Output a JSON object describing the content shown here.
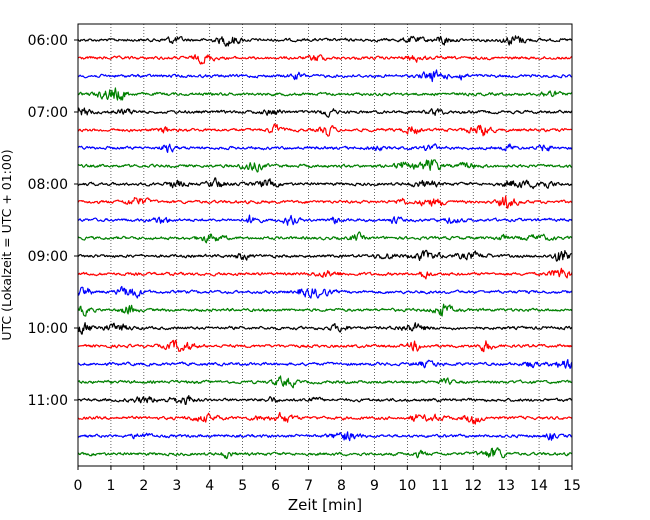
{
  "chart_data": {
    "type": "line",
    "title": "",
    "xlabel": "Zeit  [min]",
    "ylabel": "UTC (Lokalzeit = UTC + 01:00)",
    "xlim": [
      0,
      15
    ],
    "x_ticks": [
      0,
      1,
      2,
      3,
      4,
      5,
      6,
      7,
      8,
      9,
      10,
      11,
      12,
      13,
      14,
      15
    ],
    "x_tick_labels": [
      "0",
      "1",
      "2",
      "3",
      "4",
      "5",
      "6",
      "7",
      "8",
      "9",
      "10",
      "11",
      "12",
      "13",
      "14",
      "15"
    ],
    "y_tick_labels": [
      "06:00",
      "07:00",
      "08:00",
      "09:00",
      "10:00",
      "11:00"
    ],
    "y_tick_traces": [
      0,
      4,
      8,
      12,
      16,
      20
    ],
    "vertical_grid": true,
    "grid_style": "dotted",
    "trace_interval_minutes": 15,
    "trace_count": 24,
    "trace_colors": [
      "#000000",
      "#ff0000",
      "#0000ff",
      "#008000"
    ],
    "traces": [
      {
        "start": "06:00",
        "color": "#000000"
      },
      {
        "start": "06:15",
        "color": "#ff0000"
      },
      {
        "start": "06:30",
        "color": "#0000ff"
      },
      {
        "start": "06:45",
        "color": "#008000"
      },
      {
        "start": "07:00",
        "color": "#000000"
      },
      {
        "start": "07:15",
        "color": "#ff0000"
      },
      {
        "start": "07:30",
        "color": "#0000ff"
      },
      {
        "start": "07:45",
        "color": "#008000"
      },
      {
        "start": "08:00",
        "color": "#000000"
      },
      {
        "start": "08:15",
        "color": "#ff0000"
      },
      {
        "start": "08:30",
        "color": "#0000ff"
      },
      {
        "start": "08:45",
        "color": "#008000"
      },
      {
        "start": "09:00",
        "color": "#000000"
      },
      {
        "start": "09:15",
        "color": "#ff0000"
      },
      {
        "start": "09:30",
        "color": "#0000ff"
      },
      {
        "start": "09:45",
        "color": "#008000"
      },
      {
        "start": "10:00",
        "color": "#000000"
      },
      {
        "start": "10:15",
        "color": "#ff0000"
      },
      {
        "start": "10:30",
        "color": "#0000ff"
      },
      {
        "start": "10:45",
        "color": "#008000"
      },
      {
        "start": "11:00",
        "color": "#000000"
      },
      {
        "start": "11:15",
        "color": "#ff0000"
      },
      {
        "start": "11:30",
        "color": "#0000ff"
      },
      {
        "start": "11:45",
        "color": "#008000"
      }
    ]
  }
}
